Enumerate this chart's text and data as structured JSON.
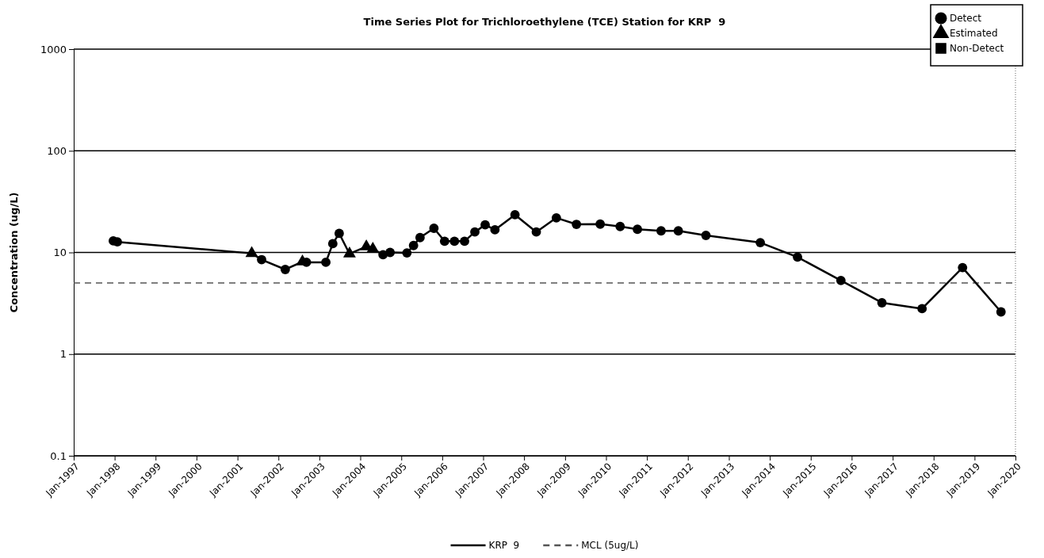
{
  "chart_data": {
    "type": "line",
    "title": "Time Series Plot for Trichloroethylene (TCE) Station for KRP  9",
    "ylabel": "Concentration (ug/L)",
    "log": "y",
    "grid": "y",
    "legend": "bottom",
    "line_style": "solid",
    "xlim": [
      "1997-01-01",
      "2020-01-01"
    ],
    "xticks": [
      {
        "value": "1997-01-01",
        "label": "Jan-1997"
      },
      {
        "value": "1998-01-01",
        "label": "Jan-1998"
      },
      {
        "value": "1999-01-01",
        "label": "Jan-1999"
      },
      {
        "value": "2000-01-01",
        "label": "Jan-2000"
      },
      {
        "value": "2001-01-01",
        "label": "Jan-2001"
      },
      {
        "value": "2002-01-01",
        "label": "Jan-2002"
      },
      {
        "value": "2003-01-01",
        "label": "Jan-2003"
      },
      {
        "value": "2004-01-01",
        "label": "Jan-2004"
      },
      {
        "value": "2005-01-01",
        "label": "Jan-2005"
      },
      {
        "value": "2006-01-01",
        "label": "Jan-2006"
      },
      {
        "value": "2007-01-01",
        "label": "Jan-2007"
      },
      {
        "value": "2008-01-01",
        "label": "Jan-2008"
      },
      {
        "value": "2009-01-01",
        "label": "Jan-2009"
      },
      {
        "value": "2010-01-01",
        "label": "Jan-2010"
      },
      {
        "value": "2011-01-01",
        "label": "Jan-2011"
      },
      {
        "value": "2012-01-01",
        "label": "Jan-2012"
      },
      {
        "value": "2013-01-01",
        "label": "Jan-2013"
      },
      {
        "value": "2014-01-01",
        "label": "Jan-2014"
      },
      {
        "value": "2015-01-01",
        "label": "Jan-2015"
      },
      {
        "value": "2016-01-01",
        "label": "Jan-2016"
      },
      {
        "value": "2017-01-01",
        "label": "Jan-2017"
      },
      {
        "value": "2018-01-01",
        "label": "Jan-2018"
      },
      {
        "value": "2019-01-01",
        "label": "Jan-2019"
      },
      {
        "value": "2020-01-01",
        "label": "Jan-2020"
      }
    ],
    "ylim": [
      0.1,
      1000
    ],
    "yticks": [
      0.1,
      1,
      10,
      100,
      1000
    ],
    "ref_lines": [
      {
        "axis": "y",
        "value": 5,
        "label": "MCL (5ug/L)",
        "color": "#555555",
        "line_style": "dashed"
      }
    ],
    "series": [
      {
        "name": "KRP  9",
        "color": "#000000",
        "marker": "none",
        "x": [
          "1997-12-20",
          "1998-01-25",
          "2001-05-08",
          "2001-08-04",
          "2002-03-03",
          "2002-08-03",
          "2002-09-08",
          "2003-02-28",
          "2003-05-01",
          "2003-06-27",
          "2003-09-27",
          "2004-02-24",
          "2004-04-22",
          "2004-07-22",
          "2004-09-23",
          "2005-02-20",
          "2005-04-20",
          "2005-06-17",
          "2005-10-19",
          "2006-01-22",
          "2006-04-20",
          "2006-07-19",
          "2006-10-19",
          "2007-01-19",
          "2007-04-16",
          "2007-10-12",
          "2008-04-19",
          "2008-10-15",
          "2009-04-12",
          "2009-11-10",
          "2010-05-07",
          "2010-10-08",
          "2011-05-07",
          "2011-10-08",
          "2012-06-10",
          "2013-10-08",
          "2014-09-05",
          "2015-09-27",
          "2016-09-27",
          "2017-09-20",
          "2018-09-16",
          "2019-08-25"
        ],
        "values": [
          13.0,
          12.7,
          9.8,
          8.5,
          6.8,
          8.1,
          8.0,
          8.0,
          12.2,
          15.4,
          9.7,
          11.4,
          10.8,
          9.5,
          10.0,
          9.9,
          11.7,
          14.0,
          17.3,
          12.9,
          12.9,
          12.9,
          15.9,
          18.7,
          16.7,
          23.5,
          15.9,
          21.9,
          18.9,
          19.0,
          18.0,
          16.9,
          16.3,
          16.3,
          14.7,
          12.5,
          9.0,
          5.3,
          3.2,
          2.8,
          7.1,
          2.6
        ]
      },
      {
        "name": "Detect",
        "type": "scatter",
        "color": "#000000",
        "marker": "circle",
        "x": [
          "1997-12-20",
          "1998-01-25",
          "2001-08-04",
          "2002-03-03",
          "2002-09-08",
          "2003-02-28",
          "2003-05-01",
          "2003-06-27",
          "2004-07-22",
          "2004-09-23",
          "2005-02-20",
          "2005-04-20",
          "2005-06-17",
          "2005-10-19",
          "2006-01-22",
          "2006-04-20",
          "2006-07-19",
          "2006-10-19",
          "2007-01-19",
          "2007-04-16",
          "2007-10-12",
          "2008-04-19",
          "2008-10-15",
          "2009-04-12",
          "2009-11-10",
          "2010-05-07",
          "2010-10-08",
          "2011-05-07",
          "2011-10-08",
          "2012-06-10",
          "2013-10-08",
          "2014-09-05",
          "2015-09-27",
          "2016-09-27",
          "2017-09-20",
          "2018-09-16",
          "2019-08-25"
        ],
        "values": [
          13.0,
          12.7,
          8.5,
          6.8,
          8.0,
          8.0,
          12.2,
          15.4,
          9.5,
          10.0,
          9.9,
          11.7,
          14.0,
          17.3,
          12.9,
          12.9,
          12.9,
          15.9,
          18.7,
          16.7,
          23.5,
          15.9,
          21.9,
          18.9,
          19.0,
          18.0,
          16.9,
          16.3,
          16.3,
          14.7,
          12.5,
          9.0,
          5.3,
          3.2,
          2.8,
          7.1,
          2.6
        ]
      },
      {
        "name": "Estimated",
        "type": "scatter",
        "color": "#000000",
        "marker": "triangle",
        "x": [
          "2001-05-08",
          "2002-08-03",
          "2003-09-27",
          "2004-02-24",
          "2004-04-22"
        ],
        "values": [
          9.8,
          8.1,
          9.7,
          11.4,
          10.8
        ]
      },
      {
        "name": "Non-Detect",
        "type": "scatter",
        "color": "#000000",
        "marker": "square"
      }
    ]
  }
}
